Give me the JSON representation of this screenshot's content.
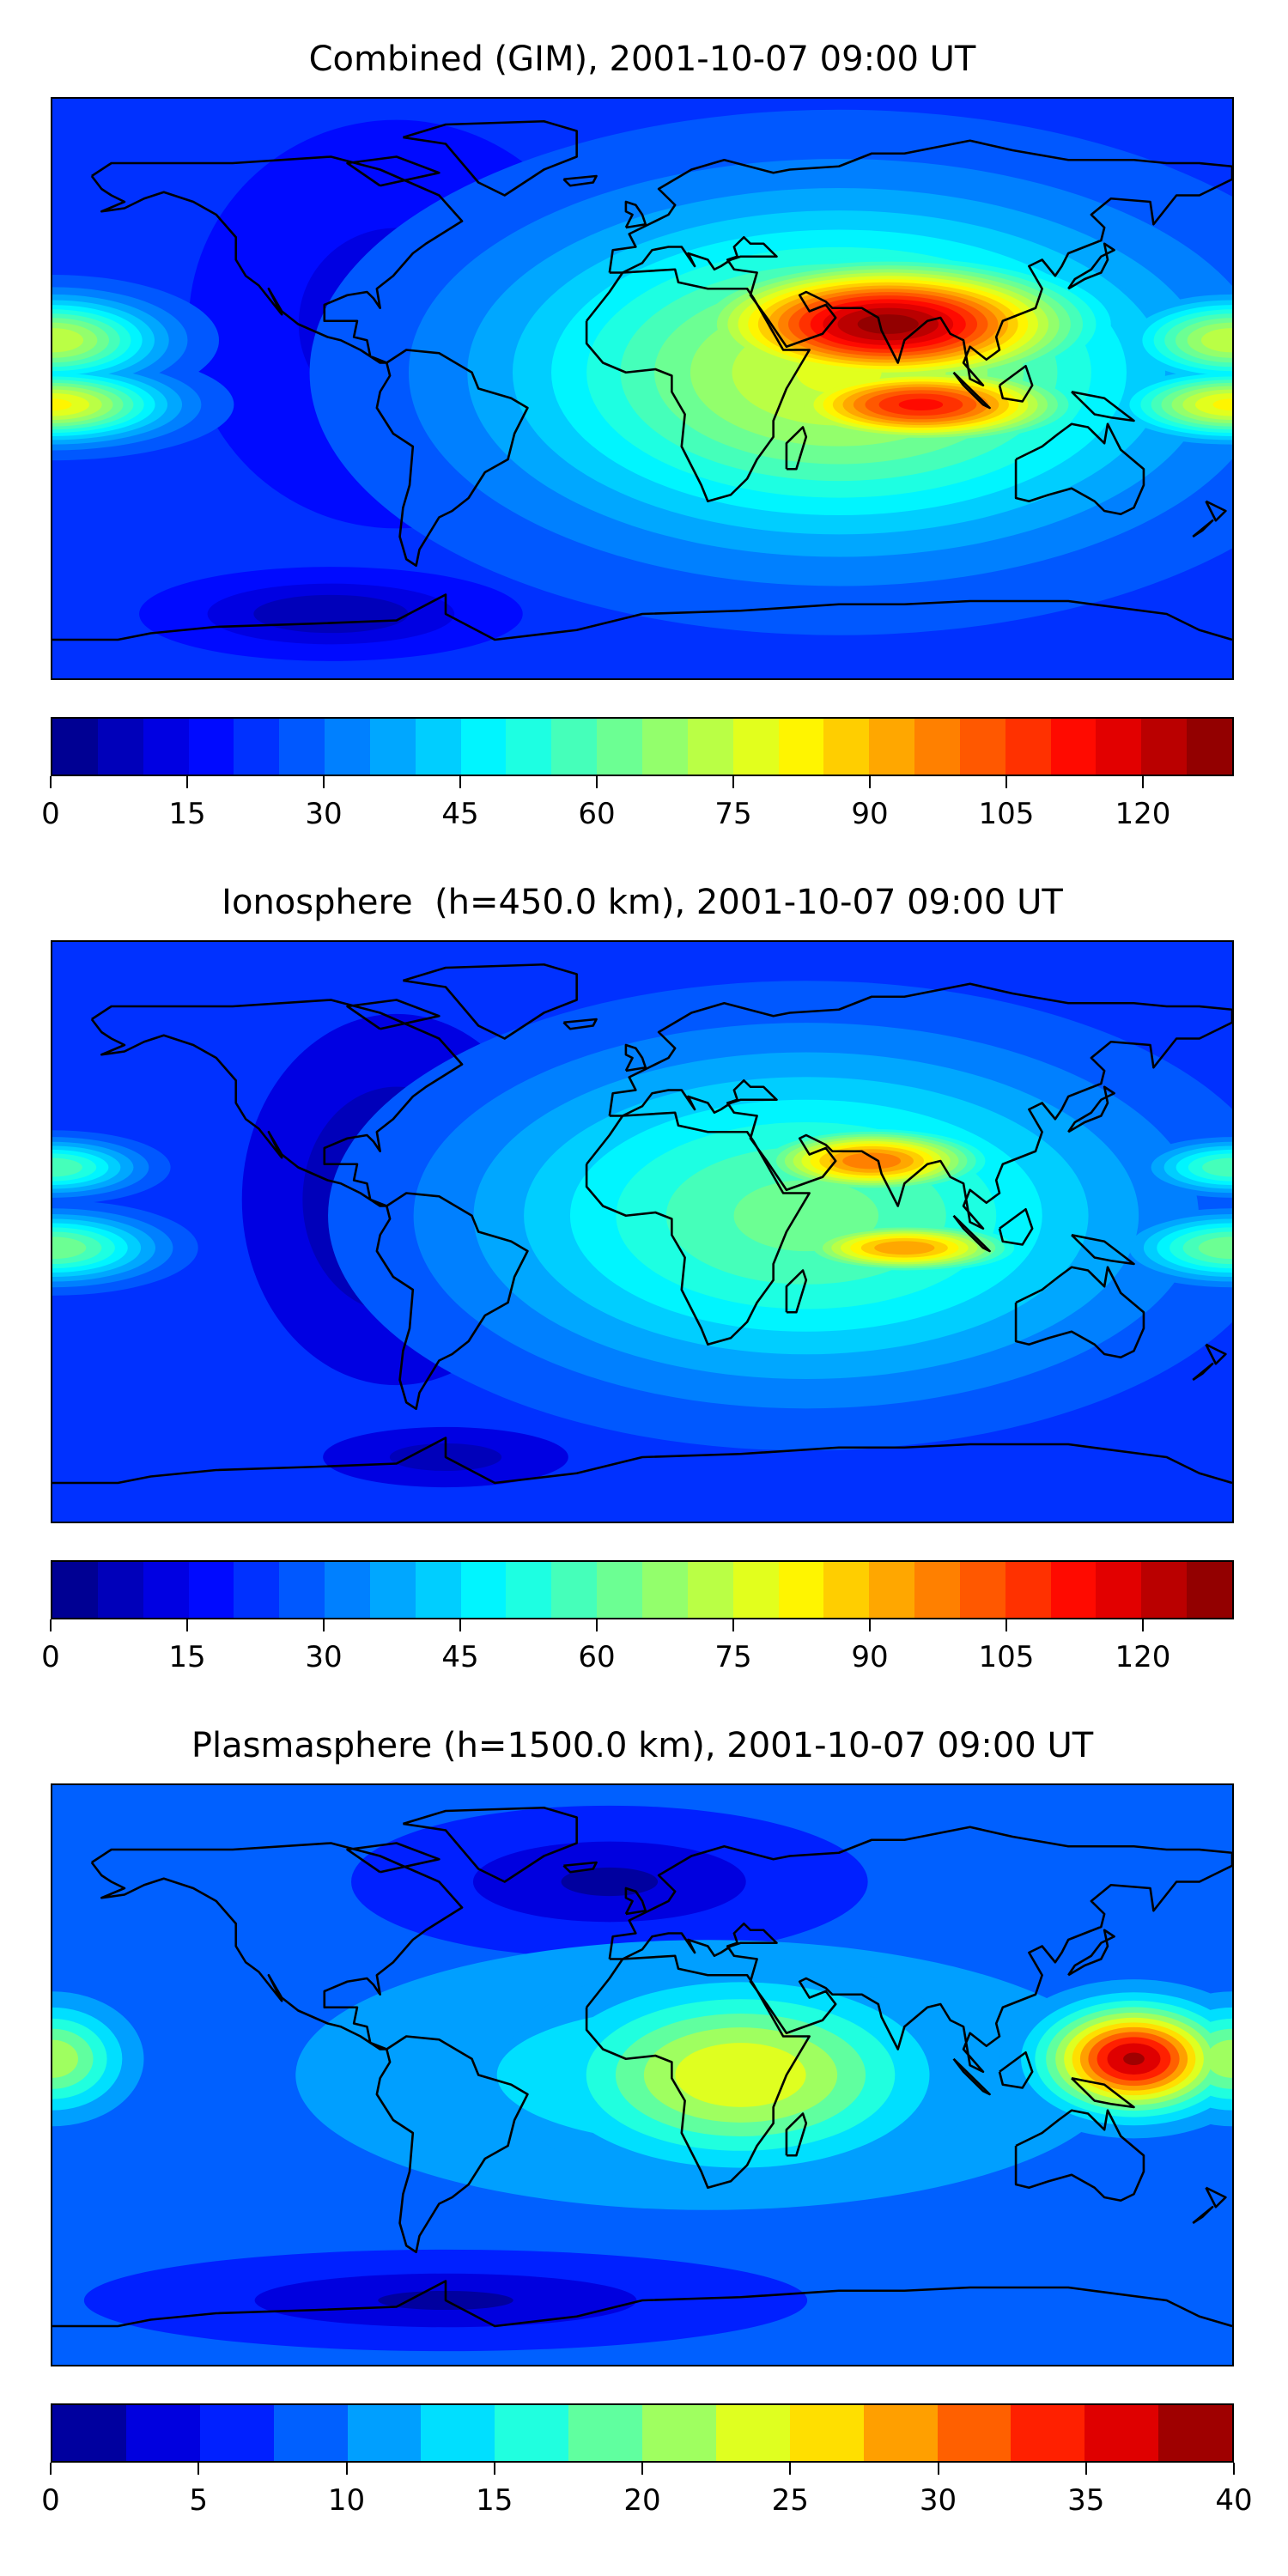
{
  "chart_data": [
    {
      "type": "heatmap",
      "title": "Combined (GIM), 2001-10-07 09:00 UT",
      "projection": "equirectangular",
      "lon_range": [
        -180,
        180
      ],
      "lat_range": [
        -90,
        90
      ],
      "colormap": "jet",
      "levels": {
        "min": 0,
        "max": 130,
        "step": 5
      },
      "colorbar_ticks": [
        0,
        15,
        30,
        45,
        60,
        75,
        90,
        105,
        120
      ],
      "field": {
        "base": 22,
        "lows": [
          {
            "lon": -75,
            "lat": 20,
            "rx": 50,
            "ry": 50,
            "value": 12
          },
          {
            "lon": -95,
            "lat": -70,
            "rx": 40,
            "ry": 10,
            "value": 5
          }
        ],
        "highs": [
          {
            "lon": 60,
            "lat": 5,
            "rx": 95,
            "ry": 48,
            "value": 76
          },
          {
            "lon": 75,
            "lat": 20,
            "rx": 55,
            "ry": 18,
            "value": 128
          },
          {
            "lon": 85,
            "lat": -5,
            "rx": 45,
            "ry": 12,
            "value": 112
          },
          {
            "lon": -180,
            "lat": 15,
            "rx": 30,
            "ry": 12,
            "value": 75
          },
          {
            "lon": -180,
            "lat": -5,
            "rx": 32,
            "ry": 10,
            "value": 82
          },
          {
            "lon": 180,
            "lat": 15,
            "rx": 30,
            "ry": 12,
            "value": 75
          },
          {
            "lon": 180,
            "lat": -5,
            "rx": 32,
            "ry": 10,
            "value": 82
          }
        ]
      }
    },
    {
      "type": "heatmap",
      "title": "Ionosphere  (h=450.0 km), 2001-10-07 09:00 UT",
      "projection": "equirectangular",
      "lon_range": [
        -180,
        180
      ],
      "lat_range": [
        -90,
        90
      ],
      "colormap": "jet",
      "levels": {
        "min": 0,
        "max": 130,
        "step": 5
      },
      "colorbar_ticks": [
        0,
        15,
        30,
        45,
        60,
        75,
        90,
        105,
        120
      ],
      "field": {
        "base": 20,
        "lows": [
          {
            "lon": -75,
            "lat": 10,
            "rx": 45,
            "ry": 55,
            "value": 5
          },
          {
            "lon": 170,
            "lat": 8,
            "rx": 12,
            "ry": 6,
            "value": 8
          },
          {
            "lon": -60,
            "lat": -70,
            "rx": 40,
            "ry": 10,
            "value": 8
          }
        ],
        "highs": [
          {
            "lon": 50,
            "lat": 5,
            "rx": 100,
            "ry": 50,
            "value": 62
          },
          {
            "lon": 70,
            "lat": 22,
            "rx": 35,
            "ry": 10,
            "value": 100
          },
          {
            "lon": 80,
            "lat": -5,
            "rx": 35,
            "ry": 8,
            "value": 95
          },
          {
            "lon": -180,
            "lat": 20,
            "rx": 25,
            "ry": 8,
            "value": 60
          },
          {
            "lon": -180,
            "lat": -5,
            "rx": 30,
            "ry": 10,
            "value": 65
          },
          {
            "lon": 180,
            "lat": 20,
            "rx": 25,
            "ry": 8,
            "value": 60
          },
          {
            "lon": 180,
            "lat": -5,
            "rx": 30,
            "ry": 10,
            "value": 65
          }
        ]
      }
    },
    {
      "type": "heatmap",
      "title": "Plasmasphere (h=1500.0 km), 2001-10-07 09:00 UT",
      "projection": "equirectangular",
      "lon_range": [
        -180,
        180
      ],
      "lat_range": [
        -90,
        90
      ],
      "colormap": "jet",
      "levels": {
        "min": 0,
        "max": 40,
        "step": 2.5
      },
      "colorbar_ticks": [
        0,
        5,
        10,
        15,
        20,
        25,
        30,
        35,
        40
      ],
      "field": {
        "base": 8,
        "lows": [
          {
            "lon": -10,
            "lat": 60,
            "rx": 50,
            "ry": 15,
            "value": 2
          },
          {
            "lon": -60,
            "lat": -70,
            "rx": 70,
            "ry": 10,
            "value": 2
          }
        ],
        "highs": [
          {
            "lon": 20,
            "lat": 0,
            "rx": 120,
            "ry": 40,
            "value": 14
          },
          {
            "lon": 30,
            "lat": 0,
            "rx": 50,
            "ry": 25,
            "value": 25
          },
          {
            "lon": 150,
            "lat": 5,
            "rx": 25,
            "ry": 15,
            "value": 38
          },
          {
            "lon": -180,
            "lat": 5,
            "rx": 20,
            "ry": 15,
            "value": 22
          },
          {
            "lon": 180,
            "lat": 5,
            "rx": 20,
            "ry": 15,
            "value": 22
          }
        ]
      }
    }
  ]
}
